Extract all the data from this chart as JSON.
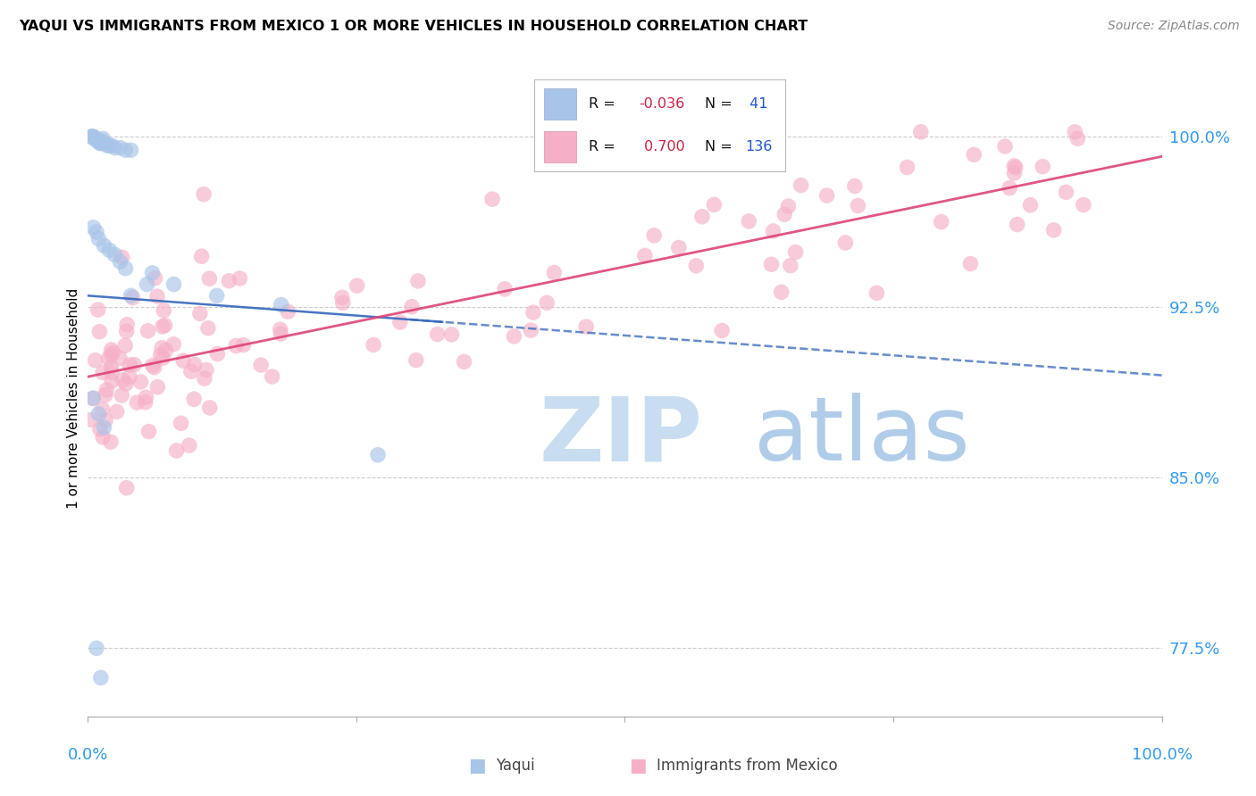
{
  "title": "YAQUI VS IMMIGRANTS FROM MEXICO 1 OR MORE VEHICLES IN HOUSEHOLD CORRELATION CHART",
  "source": "Source: ZipAtlas.com",
  "ylabel": "1 or more Vehicles in Household",
  "xmin": 0.0,
  "xmax": 1.0,
  "ymin": 0.745,
  "ymax": 1.025,
  "yticks": [
    0.775,
    0.85,
    0.925,
    1.0
  ],
  "ytick_labels": [
    "77.5%",
    "85.0%",
    "92.5%",
    "100.0%"
  ],
  "blue_scatter_color": "#a8c4e8",
  "pink_scatter_color": "#f5b0c8",
  "blue_line_color": "#3366bb",
  "pink_line_color": "#dd4477",
  "tick_color": "#3399ee",
  "grid_color": "#cccccc",
  "background_color": "#ffffff",
  "scatter_size": 160,
  "scatter_alpha": 0.65,
  "legend_r_color": "#cc2244",
  "legend_n_color": "#2255cc",
  "watermark_zip_color": "#c8ddf0",
  "watermark_atlas_color": "#b0cce8",
  "yaqui_r": -0.036,
  "yaqui_n": 41,
  "mexico_r": 0.7,
  "mexico_n": 136,
  "blue_trend_x0": 0.0,
  "blue_trend_x1": 1.0,
  "pink_trend_x0": 0.0,
  "pink_trend_x1": 1.0
}
